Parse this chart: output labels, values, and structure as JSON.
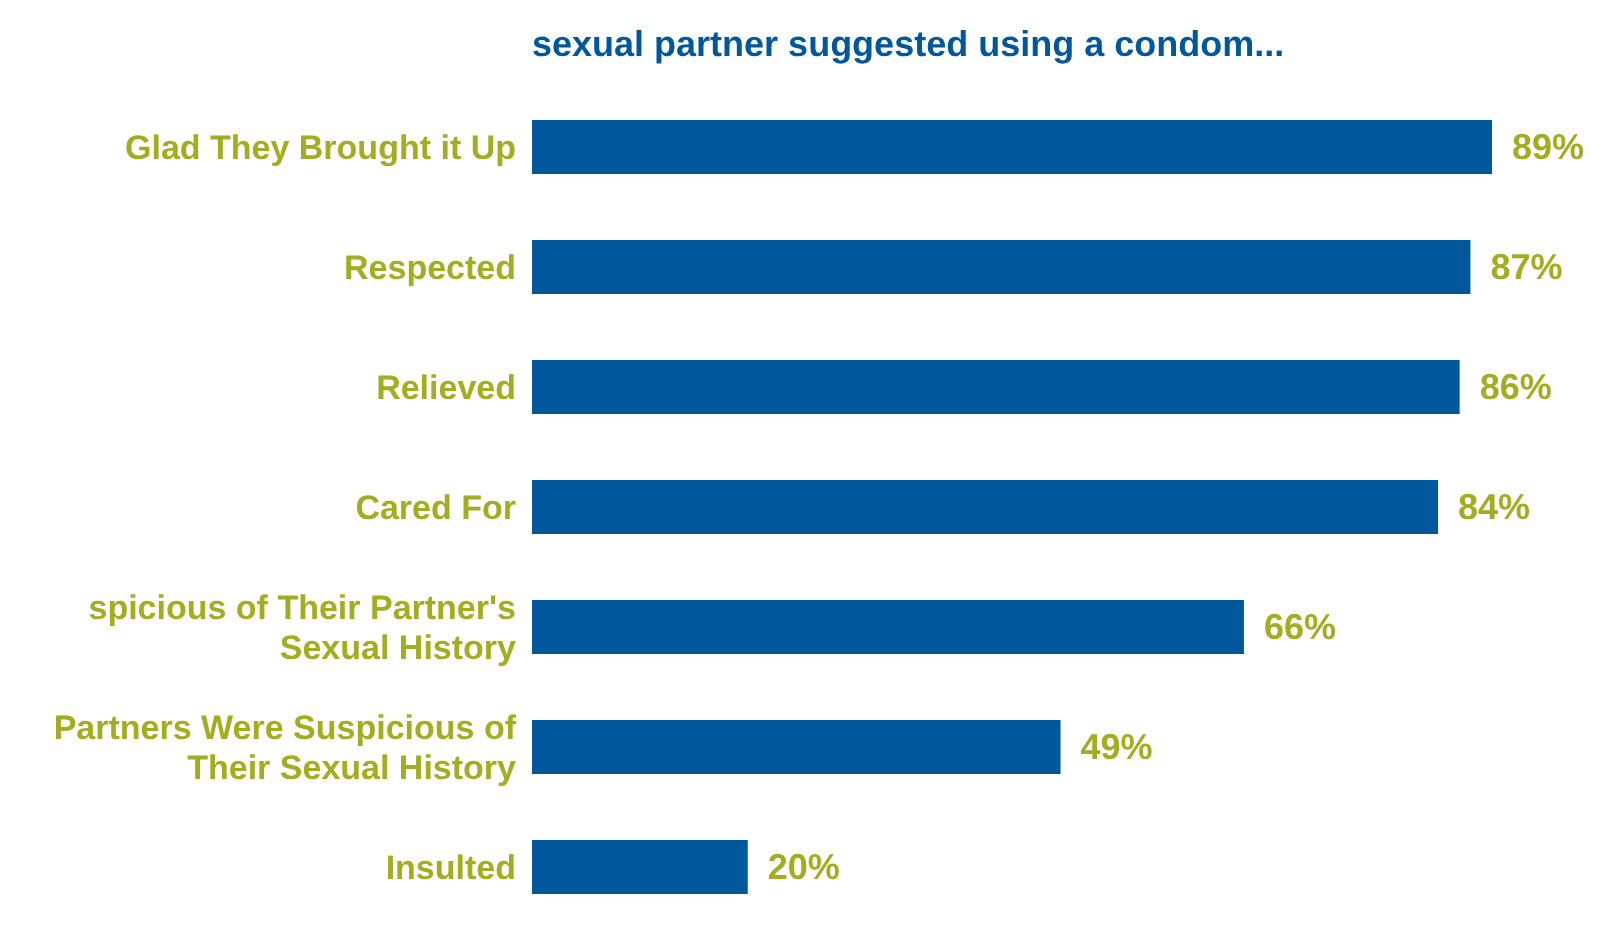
{
  "chart_data": {
    "type": "bar",
    "orientation": "horizontal",
    "title": "sexual partner suggested using a condom...",
    "categories": [
      "Glad They Brought it Up",
      "Respected",
      "Relieved",
      "Cared For",
      "spicious of Their Partner's Sexual History",
      "Partners Were Suspicious of Their Sexual History",
      "Insulted"
    ],
    "values": [
      89,
      87,
      86,
      84,
      66,
      49,
      20
    ],
    "value_labels": [
      "89%",
      "87%",
      "86%",
      "84%",
      "66%",
      "49%",
      "20%"
    ],
    "color": "#00579b"
  }
}
